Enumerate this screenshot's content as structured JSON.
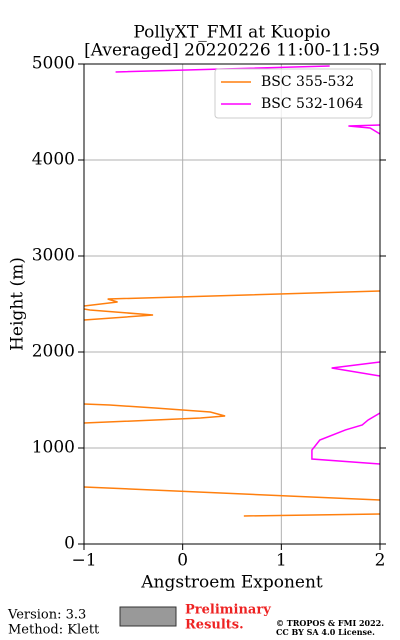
{
  "chart_data": {
    "type": "line",
    "title": "PollyXT_FMI at Kuopio",
    "subtitle": "[Averaged] 20220226 11:00-11:59",
    "x_label": "Angstroem Exponent",
    "y_label": "Height (m)",
    "xlim": [
      -1,
      2
    ],
    "ylim": [
      0,
      5000
    ],
    "xticks": [
      {
        "value": -1,
        "label": "−1"
      },
      0,
      1,
      2
    ],
    "yticks": [
      0,
      1000,
      2000,
      3000,
      4000,
      5000
    ],
    "grid": true,
    "legend": "upper right",
    "series": [
      {
        "name": "BSC 355-532",
        "color": "#ff7f0e",
        "x": [
          0.62,
          2,
          null,
          2,
          -1,
          null,
          -1,
          0.18,
          0.43,
          0.28,
          -0.28,
          -0.74,
          -1,
          null,
          -1,
          -0.3,
          -0.94,
          -1,
          null,
          -1,
          -0.66,
          -0.76,
          2
        ],
        "y": [
          292,
          312,
          null,
          458,
          594,
          null,
          1260,
          1312,
          1333,
          1375,
          1417,
          1448,
          1458,
          null,
          2333,
          2385,
          2438,
          2448,
          null,
          2479,
          2521,
          2552,
          2635
        ]
      },
      {
        "name": "BSC 532-1064",
        "color": "#ff00ff",
        "x": [
          2,
          1.31,
          1.31,
          1.39,
          1.65,
          1.82,
          1.88,
          2,
          null,
          2,
          1.51,
          2,
          null,
          2,
          1.9,
          1.68,
          2,
          null,
          -0.68,
          1.49
        ],
        "y": [
          833,
          885,
          979,
          1083,
          1188,
          1240,
          1292,
          1365,
          null,
          1750,
          1833,
          1896,
          null,
          4271,
          4333,
          4354,
          4365,
          null,
          4917,
          4979
        ]
      }
    ]
  },
  "footer": {
    "version": "Version: 3.3",
    "method": "Method: Klett",
    "preliminary": "Preliminary",
    "results": "Results.",
    "copyright": "© TROPOS & FMI 2022.",
    "license": "CC BY SA 4.0 License."
  }
}
